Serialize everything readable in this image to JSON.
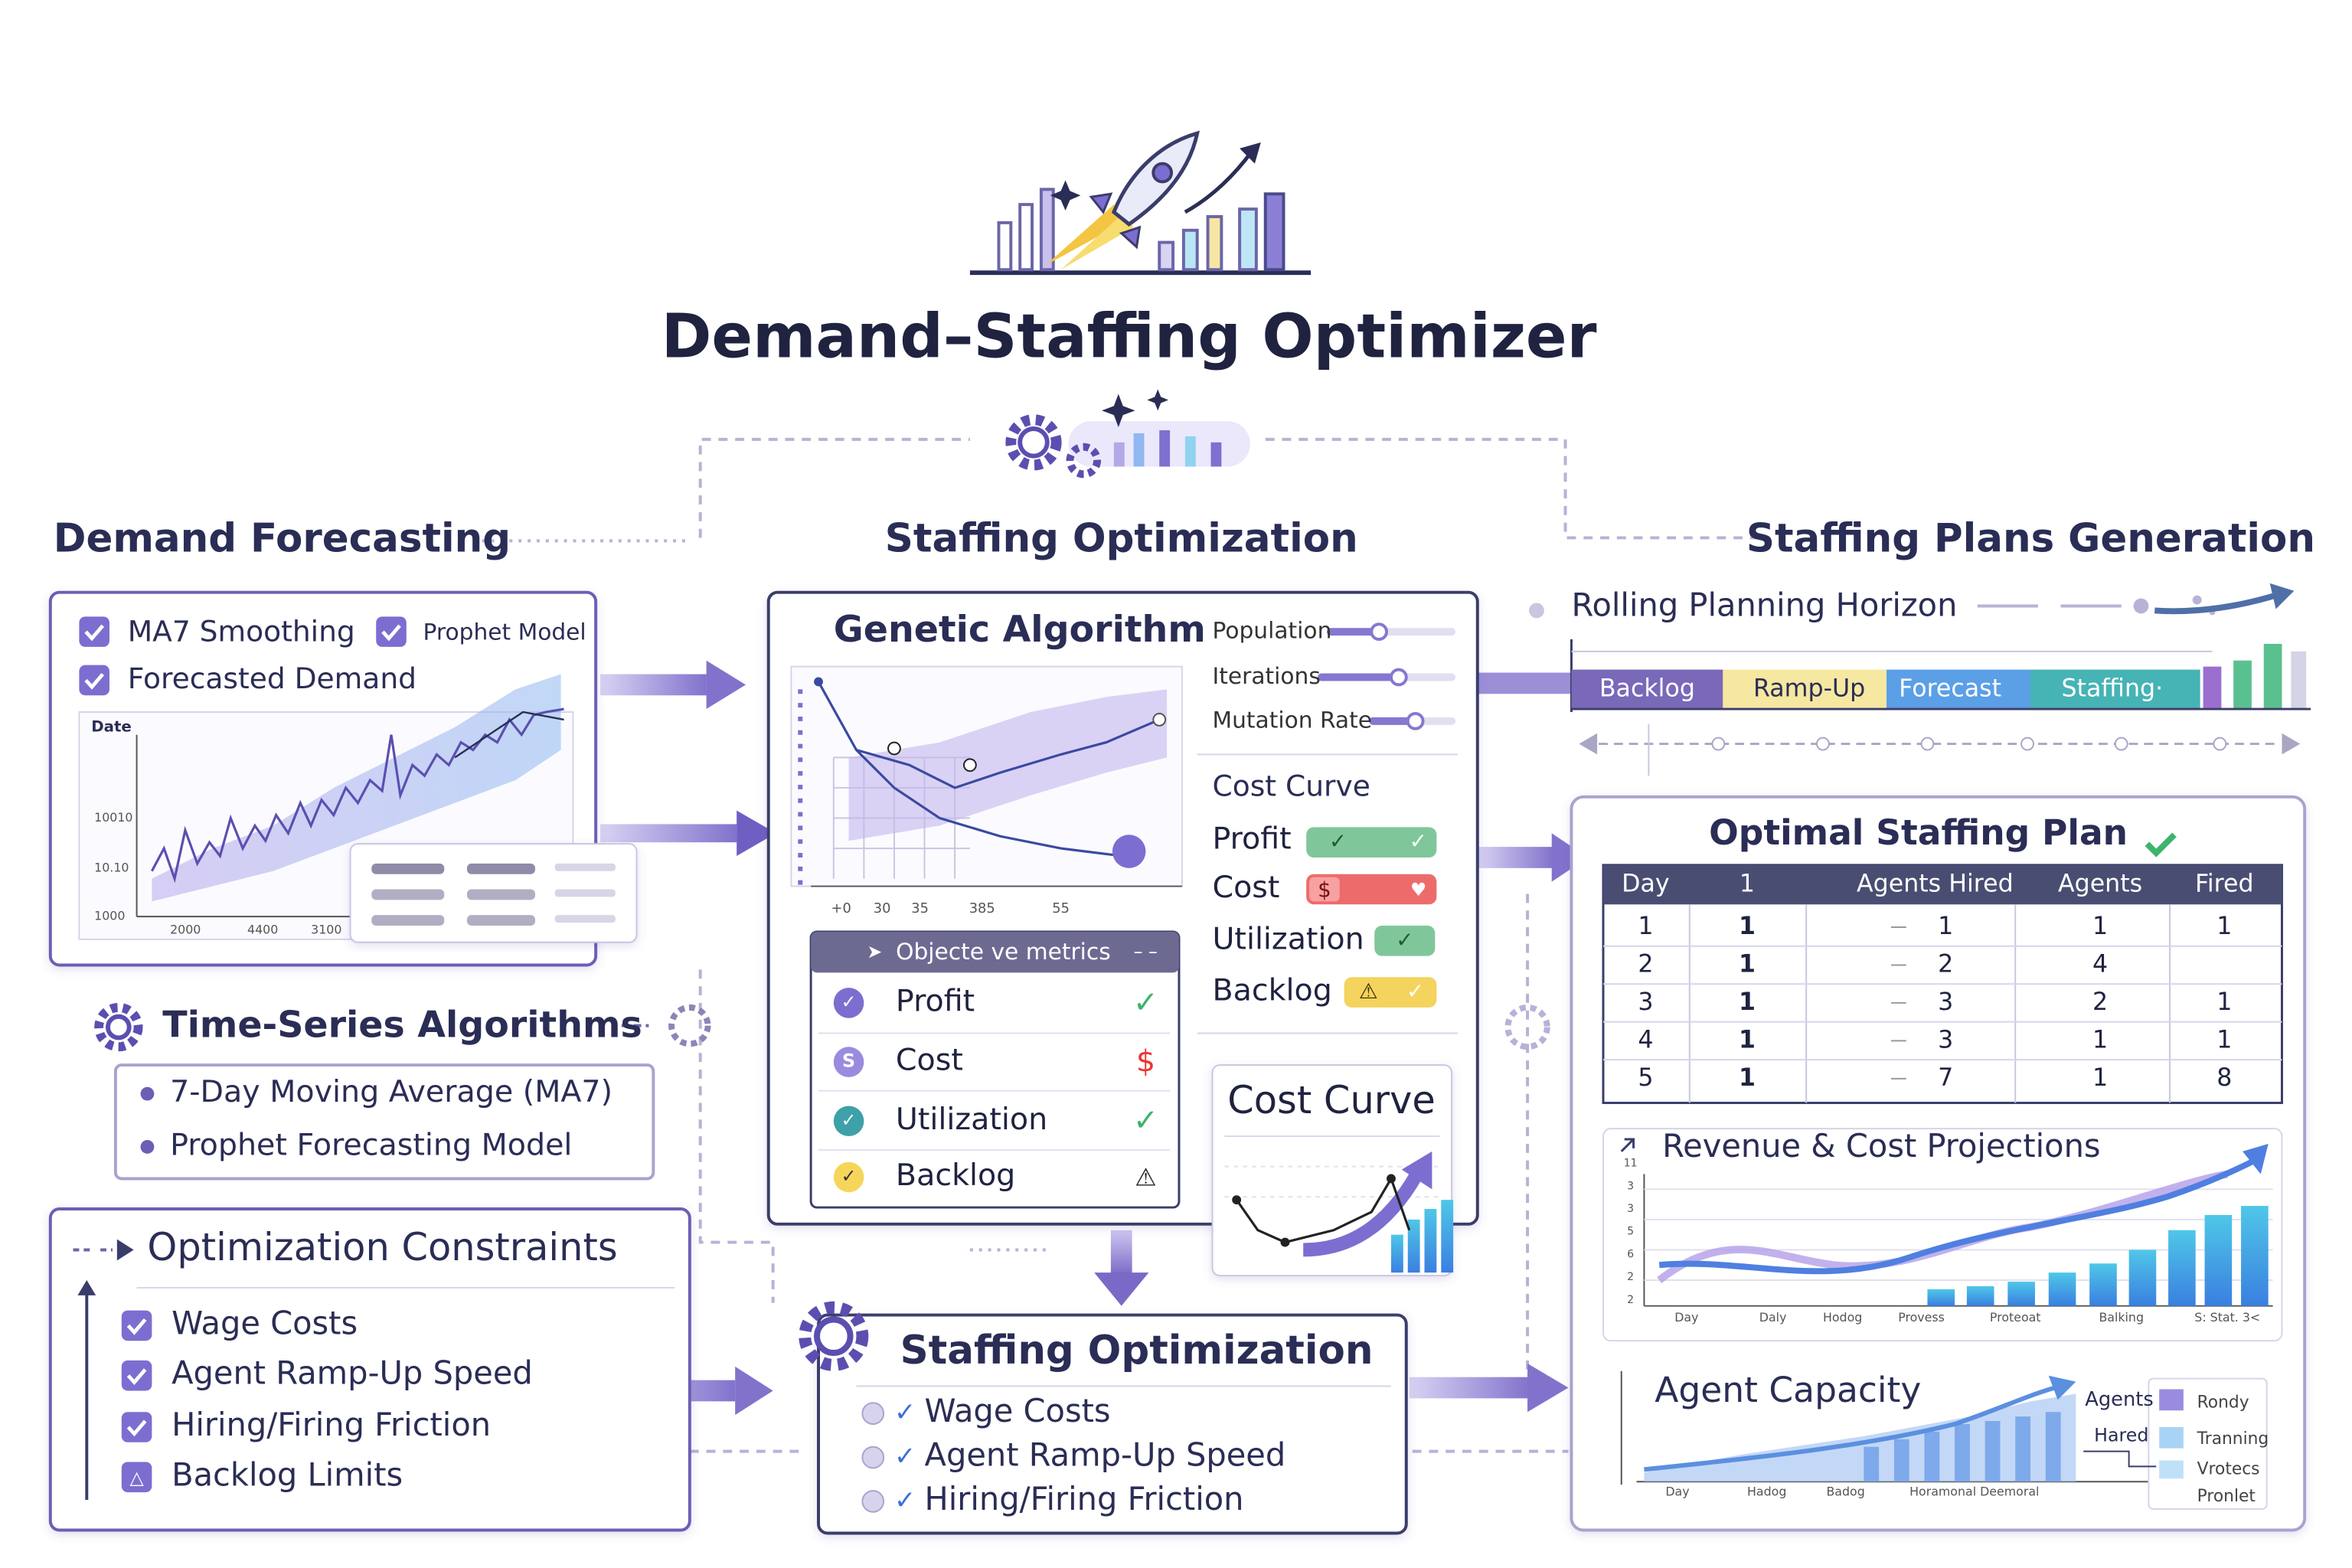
{
  "header": {
    "title": "Demand–Staffing Optimizer"
  },
  "demand_forecasting": {
    "title": "Demand Forecasting",
    "checks": [
      "MA7 Smoothing",
      "Prophet Model",
      "Forecasted Demand"
    ],
    "chart": {
      "axis_label": "Date",
      "y_labels": [
        "10010",
        "10.10",
        "1000"
      ],
      "x_labels": [
        "2000",
        "4400",
        "3100"
      ]
    }
  },
  "time_series": {
    "title": "Time-Series Algorithms",
    "items": [
      "7-Day Moving Average (MA7)",
      "Prophet Forecasting Model"
    ]
  },
  "constraints": {
    "title": "Optimization Constraints",
    "items": [
      "Wage Costs",
      "Agent Ramp-Up Speed",
      "Hiring/Firing Friction",
      "Backlog Limits"
    ]
  },
  "staffing_optimization": {
    "title": "Staffing Optimization",
    "genetic": {
      "title": "Genetic Algorithm",
      "sliders": [
        "Population",
        "Iterations",
        "Mutation Rate"
      ],
      "x_labels": [
        "+0",
        "30",
        "35",
        "385",
        "55"
      ],
      "status_title": "Cost Curve",
      "status": [
        "Profit",
        "Cost",
        "Utilization",
        "Backlog"
      ],
      "metrics_title": "Objecte ve metrics",
      "metrics": [
        "Profit",
        "Cost",
        "Utilization",
        "Backlog"
      ],
      "cost_card": "Cost Curve"
    },
    "box": {
      "title": "Staffing Optimization",
      "items": [
        "Wage Costs",
        "Agent Ramp-Up Speed",
        "Hiring/Firing Friction"
      ]
    }
  },
  "plans": {
    "title": "Staffing Plans Generation",
    "horizon": "Rolling Planning Horizon",
    "phases": [
      "Backlog",
      "Ramp-Up",
      "Forecast",
      "Staffing·"
    ],
    "table": {
      "title": "Optimal Staffing Plan",
      "columns": [
        "Day",
        "1",
        "Agents Hired",
        "Agents",
        "Fired"
      ],
      "rows": [
        [
          1,
          1,
          1,
          1,
          1
        ],
        [
          2,
          1,
          2,
          4,
          null
        ],
        [
          3,
          1,
          3,
          2,
          1
        ],
        [
          4,
          1,
          3,
          1,
          1
        ],
        [
          5,
          1,
          7,
          1,
          8
        ]
      ]
    },
    "revenue": {
      "title": "Revenue & Cost Projections",
      "y_labels": [
        "11",
        "3",
        "3",
        "5",
        "6",
        "2",
        "2"
      ],
      "x_labels": [
        "Day",
        "Daly",
        "Hodog",
        "Provess",
        "Proteoat",
        "Balking",
        "S: Stat. 3<"
      ]
    },
    "capacity": {
      "title": "Agent Capacity",
      "labels": [
        "Agents",
        "Hared"
      ],
      "legend": [
        "Rondy",
        "Tranning",
        "Vrotecs",
        "Pronlet"
      ],
      "x_labels": [
        "Day",
        "Hadog",
        "Badog",
        "Horamonal Deemoral"
      ]
    }
  }
}
